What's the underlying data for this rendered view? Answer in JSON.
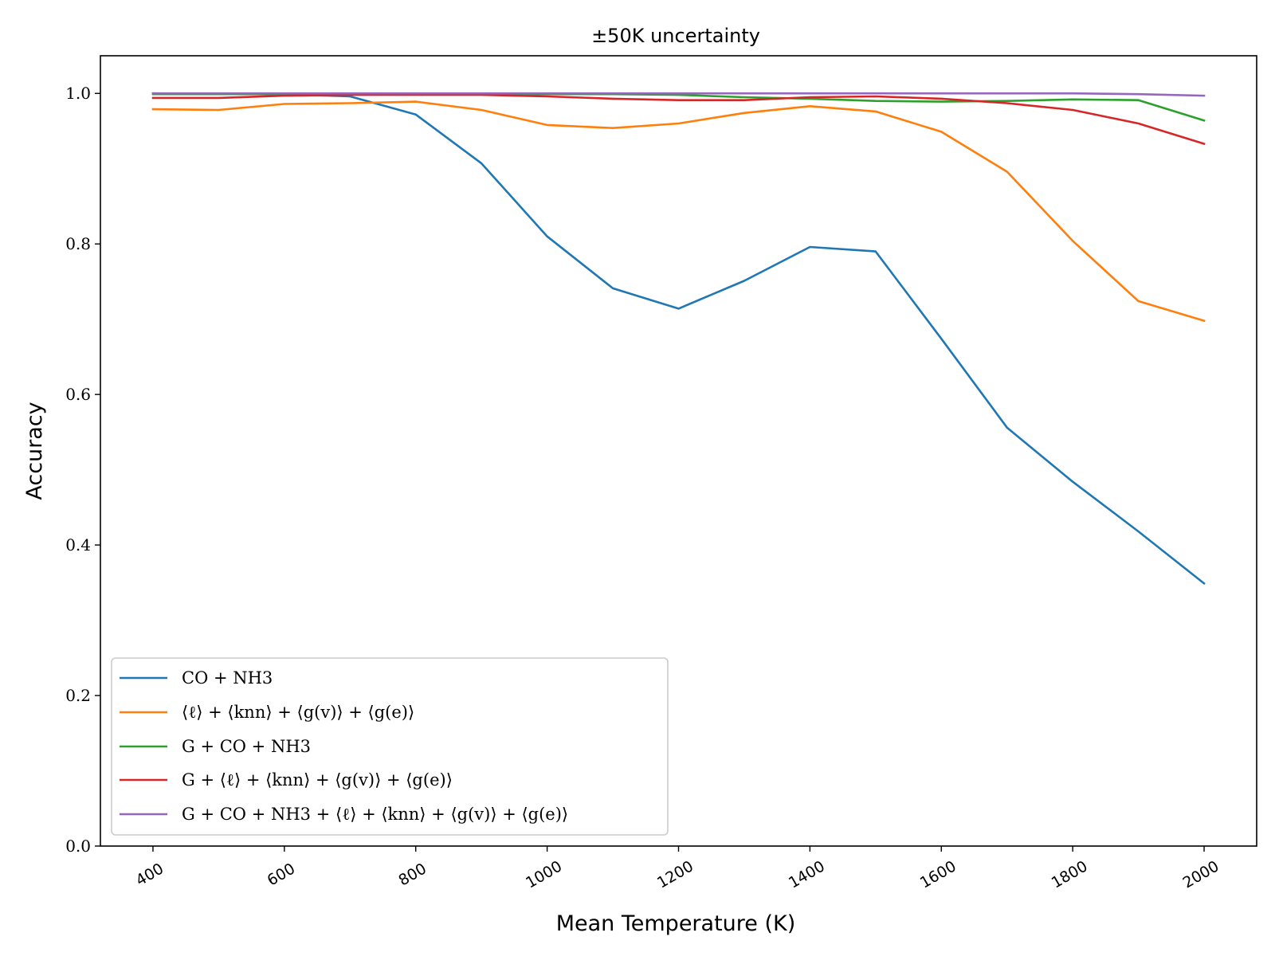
{
  "chart_data": {
    "type": "line",
    "title": "±50K uncertainty",
    "xlabel": "Mean Temperature (K)",
    "ylabel": "Accuracy",
    "xlim": [
      320,
      2080
    ],
    "ylim": [
      0.0,
      1.05
    ],
    "xticks": [
      400,
      600,
      800,
      1000,
      1200,
      1400,
      1600,
      1800,
      2000
    ],
    "xtick_labels": [
      "400",
      "600",
      "800",
      "1000",
      "1200",
      "1400",
      "1600",
      "1800",
      "2000"
    ],
    "yticks": [
      0.0,
      0.2,
      0.4,
      0.6,
      0.8,
      1.0
    ],
    "ytick_labels": [
      "0.0",
      "0.2",
      "0.4",
      "0.6",
      "0.8",
      "1.0"
    ],
    "grid": false,
    "legend_position": "lower-left",
    "x": [
      400,
      500,
      600,
      700,
      800,
      900,
      1000,
      1100,
      1200,
      1300,
      1400,
      1500,
      1600,
      1700,
      1800,
      1900,
      2000
    ],
    "series": [
      {
        "name": "CO + NH3",
        "color": "#1f77b4",
        "values": [
          1.0,
          0.999,
          0.999,
          0.996,
          0.972,
          0.907,
          0.81,
          0.741,
          0.714,
          0.751,
          0.796,
          0.79,
          0.674,
          0.556,
          0.484,
          0.418,
          0.349
        ]
      },
      {
        "name": "⟨ℓ⟩ + ⟨knn⟩ + ⟨g(v)⟩ + ⟨g(e)⟩",
        "color": "#ff7f0e",
        "values": [
          0.979,
          0.978,
          0.986,
          0.987,
          0.989,
          0.978,
          0.958,
          0.954,
          0.96,
          0.974,
          0.983,
          0.976,
          0.949,
          0.896,
          0.804,
          0.724,
          0.698
        ]
      },
      {
        "name": "G + CO + NH3",
        "color": "#2ca02c",
        "values": [
          0.999,
          0.999,
          0.999,
          0.999,
          0.999,
          0.999,
          0.999,
          0.999,
          0.998,
          0.995,
          0.993,
          0.99,
          0.989,
          0.99,
          0.992,
          0.991,
          0.964
        ]
      },
      {
        "name": "G + ⟨ℓ⟩ + ⟨knn⟩ + ⟨g(v)⟩ + ⟨g(e)⟩",
        "color": "#d62728",
        "values": [
          0.994,
          0.994,
          0.997,
          0.998,
          0.998,
          0.998,
          0.996,
          0.993,
          0.991,
          0.991,
          0.995,
          0.996,
          0.993,
          0.987,
          0.978,
          0.96,
          0.933
        ]
      },
      {
        "name": "G + CO + NH3 + ⟨ℓ⟩ + ⟨knn⟩ + ⟨g(v)⟩ + ⟨g(e)⟩",
        "color": "#9467bd",
        "values": [
          1.0,
          1.0,
          1.0,
          1.0,
          1.0,
          1.0,
          1.0,
          1.0,
          1.0,
          1.0,
          1.0,
          1.0,
          1.0,
          1.0,
          1.0,
          0.999,
          0.997
        ]
      }
    ]
  }
}
